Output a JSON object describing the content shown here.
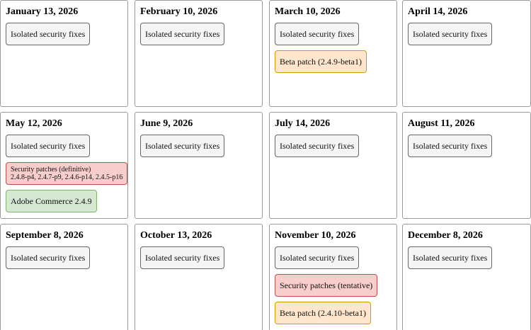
{
  "months": [
    {
      "title": "January 13, 2026",
      "items": [
        {
          "label": "Isolated security fixes",
          "color": "#f5f5f5",
          "border": "#666666"
        }
      ]
    },
    {
      "title": "February 10, 2026",
      "items": [
        {
          "label": "Isolated security fixes",
          "color": "#f5f5f5",
          "border": "#666666"
        }
      ]
    },
    {
      "title": "March 10, 2026",
      "items": [
        {
          "label": "Isolated security fixes",
          "color": "#f5f5f5",
          "border": "#666666"
        },
        {
          "label": "Beta patch (2.4.9-beta1)",
          "color": "#ffe6cc",
          "border": "#d79b00"
        }
      ]
    },
    {
      "title": "April 14, 2026",
      "items": [
        {
          "label": "Isolated security fixes",
          "color": "#f5f5f5",
          "border": "#666666"
        }
      ]
    },
    {
      "title": "May 12, 2026",
      "items": [
        {
          "label": "Isolated security fixes",
          "color": "#f5f5f5",
          "border": "#666666"
        },
        {
          "label": "Security patches (definitive)",
          "detail": "2.4.8-p4, 2.4.7-p9, 2.4.6-p14, 2.4.5-p16",
          "color": "#f8cecc",
          "border": "#b85450"
        },
        {
          "label": "Adobe Commerce 2.4.9",
          "color": "#d5e8d4",
          "border": "#82b366"
        }
      ]
    },
    {
      "title": "June 9, 2026",
      "items": [
        {
          "label": "Isolated security fixes",
          "color": "#f5f5f5",
          "border": "#666666"
        }
      ]
    },
    {
      "title": "July 14, 2026",
      "items": [
        {
          "label": "Isolated security fixes",
          "color": "#f5f5f5",
          "border": "#666666"
        }
      ]
    },
    {
      "title": "August 11, 2026",
      "items": [
        {
          "label": "Isolated security fixes",
          "color": "#f5f5f5",
          "border": "#666666"
        }
      ]
    },
    {
      "title": "September 8, 2026",
      "items": [
        {
          "label": "Isolated security fixes",
          "color": "#f5f5f5",
          "border": "#666666"
        }
      ]
    },
    {
      "title": "October 13, 2026",
      "items": [
        {
          "label": "Isolated security fixes",
          "color": "#f5f5f5",
          "border": "#666666"
        }
      ]
    },
    {
      "title": "November 10, 2026",
      "items": [
        {
          "label": "Isolated security fixes",
          "color": "#f5f5f5",
          "border": "#666666"
        },
        {
          "label": "Security patches (tentative)",
          "color": "#f8cecc",
          "border": "#b85450"
        },
        {
          "label": "Beta patch (2.4.10-beta1)",
          "color": "#ffe6cc",
          "border": "#d79b00"
        }
      ]
    },
    {
      "title": "December 8, 2026",
      "items": [
        {
          "label": "Isolated security fixes",
          "color": "#f5f5f5",
          "border": "#666666"
        }
      ]
    }
  ]
}
